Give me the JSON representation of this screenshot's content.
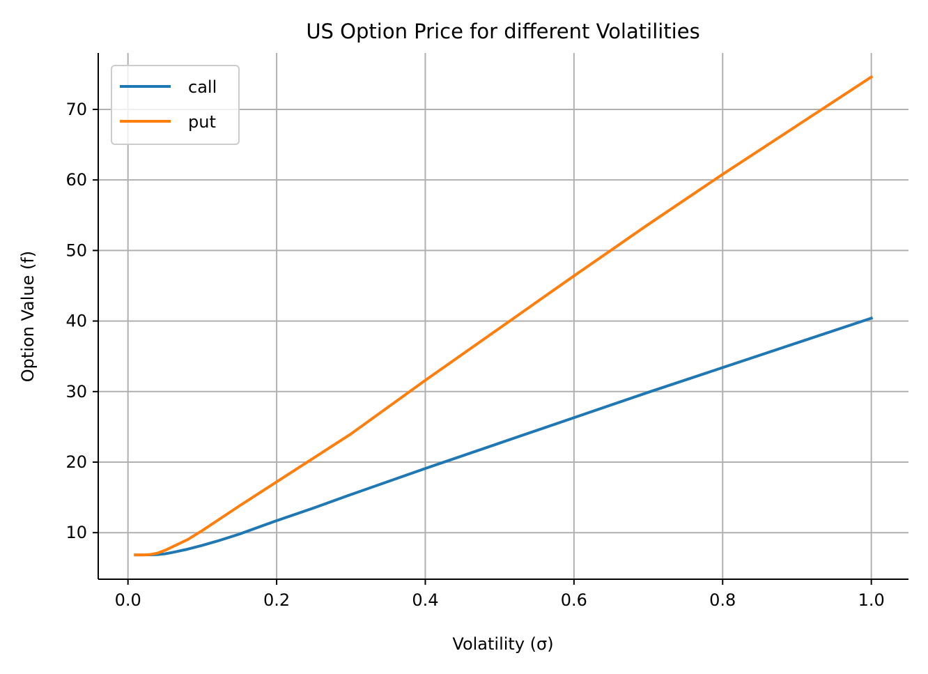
{
  "chart_data": {
    "type": "line",
    "title": "US Option Price for different Volatilities",
    "xlabel": "Volatility (σ)",
    "ylabel": "Option Value (f)",
    "xlim": [
      -0.04,
      1.05
    ],
    "ylim": [
      3.4,
      78
    ],
    "xticks": [
      0.0,
      0.2,
      0.4,
      0.6,
      0.8,
      1.0
    ],
    "xtick_labels": [
      "0.0",
      "0.2",
      "0.4",
      "0.6",
      "0.8",
      "1.0"
    ],
    "yticks": [
      10,
      20,
      30,
      40,
      50,
      60,
      70
    ],
    "ytick_labels": [
      "10",
      "20",
      "30",
      "40",
      "50",
      "60",
      "70"
    ],
    "grid": true,
    "legend_position": "top-left",
    "series": [
      {
        "name": "call",
        "color": "#1f77b4",
        "x": [
          0.01,
          0.02,
          0.03,
          0.04,
          0.05,
          0.06,
          0.08,
          0.1,
          0.12,
          0.15,
          0.2,
          0.25,
          0.3,
          0.4,
          0.5,
          0.6,
          0.7,
          0.8,
          0.9,
          1.0
        ],
        "y": [
          6.85,
          6.85,
          6.86,
          6.9,
          7.0,
          7.2,
          7.65,
          8.2,
          8.8,
          9.8,
          11.7,
          13.5,
          15.4,
          19.1,
          22.7,
          26.3,
          29.9,
          33.4,
          36.9,
          40.4
        ]
      },
      {
        "name": "put",
        "color": "#ff7f0e",
        "x": [
          0.01,
          0.02,
          0.03,
          0.04,
          0.05,
          0.06,
          0.08,
          0.1,
          0.12,
          0.15,
          0.2,
          0.25,
          0.3,
          0.4,
          0.5,
          0.6,
          0.7,
          0.8,
          0.9,
          1.0
        ],
        "y": [
          6.85,
          6.85,
          6.9,
          7.1,
          7.5,
          8.0,
          9.0,
          10.3,
          11.7,
          13.8,
          17.2,
          20.6,
          24.0,
          31.6,
          39.0,
          46.4,
          53.7,
          60.8,
          67.7,
          74.6
        ]
      }
    ]
  }
}
